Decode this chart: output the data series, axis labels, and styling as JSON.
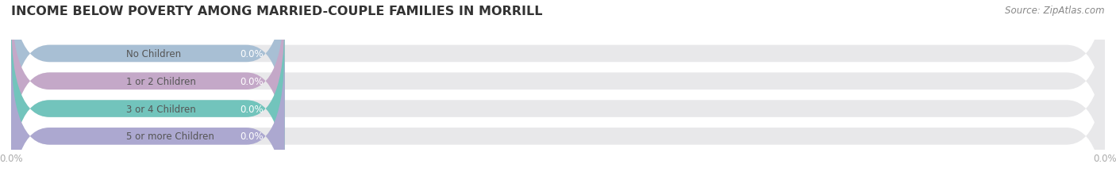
{
  "title": "INCOME BELOW POVERTY AMONG MARRIED-COUPLE FAMILIES IN MORRILL",
  "source": "Source: ZipAtlas.com",
  "categories": [
    "No Children",
    "1 or 2 Children",
    "3 or 4 Children",
    "5 or more Children"
  ],
  "values": [
    0.0,
    0.0,
    0.0,
    0.0
  ],
  "bar_colors": [
    "#a8bfd4",
    "#c4a8c8",
    "#72c4bc",
    "#aca8d0"
  ],
  "bar_bg_color": "#e8e8ea",
  "background_color": "#ffffff",
  "xlim": [
    0,
    100
  ],
  "title_fontsize": 11.5,
  "label_fontsize": 8.5,
  "value_fontsize": 8.5,
  "source_fontsize": 8.5,
  "tick_fontsize": 8.5,
  "bar_height": 0.62,
  "label_color": "#666666",
  "value_color": "#ffffff",
  "tick_color": "#aaaaaa",
  "grid_color": "#cccccc",
  "source_color": "#888888",
  "colored_bar_width": 25
}
